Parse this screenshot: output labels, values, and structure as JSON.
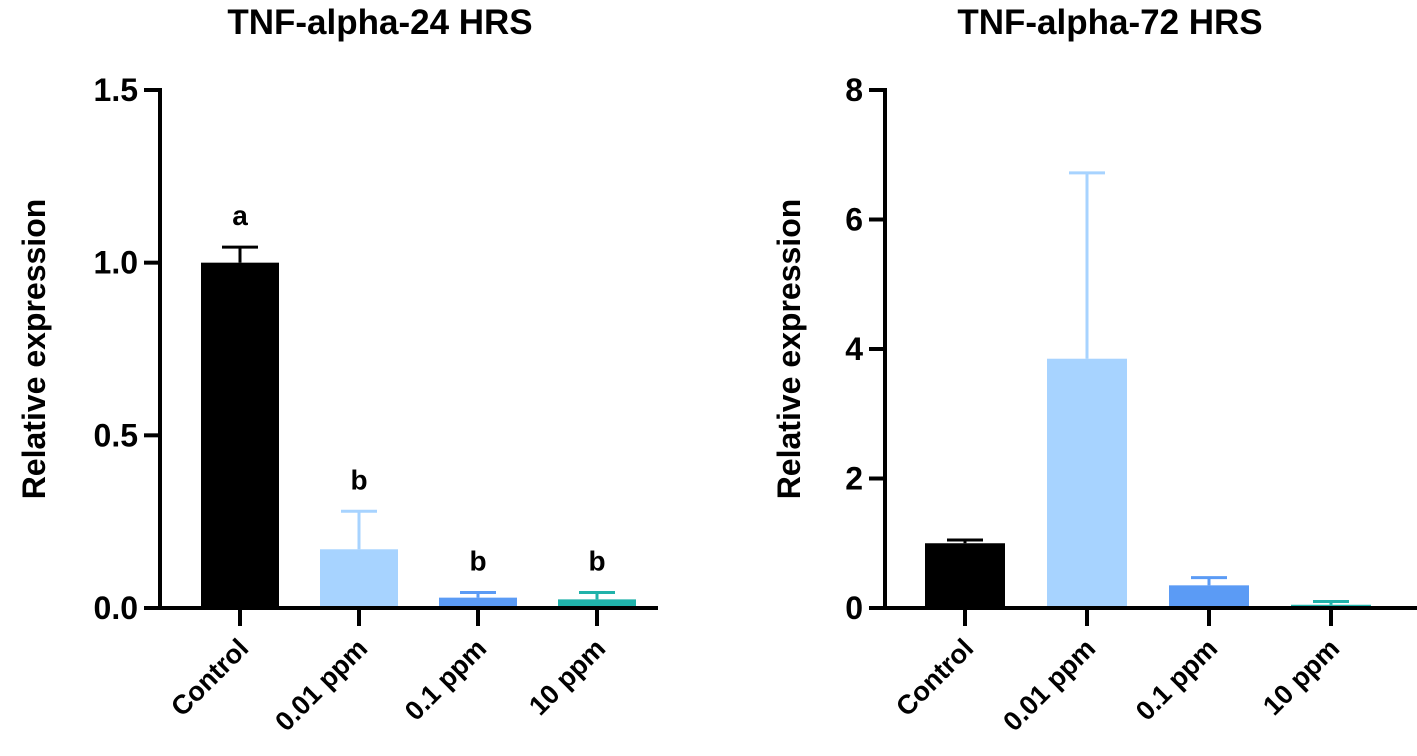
{
  "chart_data": [
    {
      "type": "bar",
      "title": "TNF-alpha-24 HRS",
      "ylabel": "Relative expression",
      "xlabel": "",
      "ylim": [
        0,
        1.5
      ],
      "yticks": [
        "0.0",
        "0.5",
        "1.0",
        "1.5"
      ],
      "ytick_values": [
        0,
        0.5,
        1.0,
        1.5
      ],
      "categories": [
        "Control",
        "0.01 ppm",
        "0.1 ppm",
        "10 ppm"
      ],
      "values": [
        1.0,
        0.17,
        0.03,
        0.025
      ],
      "error": [
        0.045,
        0.11,
        0.015,
        0.02
      ],
      "significance": [
        "a",
        "b",
        "b",
        "b"
      ],
      "colors": [
        "#000000",
        "#a7d3ff",
        "#5b9bf5",
        "#20b2aa"
      ],
      "error_colors": [
        "#000000",
        "#a7d3ff",
        "#5b9bf5",
        "#20b2aa"
      ],
      "grid": false
    },
    {
      "type": "bar",
      "title": "TNF-alpha-72 HRS",
      "ylabel": "Relative expression",
      "xlabel": "",
      "ylim": [
        0,
        8
      ],
      "yticks": [
        "0",
        "2",
        "4",
        "6",
        "8"
      ],
      "ytick_values": [
        0,
        2,
        4,
        6,
        8
      ],
      "categories": [
        "Control",
        "0.01 ppm",
        "0.1 ppm",
        "10 ppm"
      ],
      "values": [
        1.0,
        3.85,
        0.35,
        0.05
      ],
      "error": [
        0.05,
        2.87,
        0.12,
        0.05
      ],
      "significance": [
        "",
        "",
        "",
        ""
      ],
      "colors": [
        "#000000",
        "#a7d3ff",
        "#5b9bf5",
        "#20b2aa"
      ],
      "error_colors": [
        "#000000",
        "#a7d3ff",
        "#5b9bf5",
        "#20b2aa"
      ],
      "grid": false
    }
  ]
}
